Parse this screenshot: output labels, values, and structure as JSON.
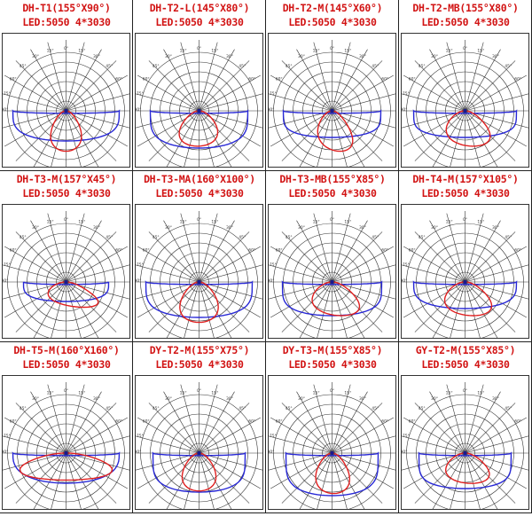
{
  "colors": {
    "title": "#d21414",
    "c0": "#2828d6",
    "c90": "#e02020",
    "grid": "#333333"
  },
  "angle_labels": [
    "90°",
    "75°",
    "60°",
    "45°",
    "30°",
    "15°",
    "0°",
    "15°",
    "30°",
    "45°",
    "60°",
    "75°",
    "90°"
  ],
  "panels": [
    {
      "title": "DH-T1(155°X90°)",
      "led": "LED:5050 4*3030",
      "c0_width_deg": 155,
      "c90_width_deg": 90
    },
    {
      "title": "DH-T2-L(145°X80°)",
      "led": "LED:5050 4*3030",
      "c0_width_deg": 145,
      "c90_width_deg": 80
    },
    {
      "title": "DH-T2-M(145°X60°)",
      "led": "LED:5050 4*3030",
      "c0_width_deg": 145,
      "c90_width_deg": 60
    },
    {
      "title": "DH-T2-MB(155°X80°)",
      "led": "LED:5050 4*3030",
      "c0_width_deg": 155,
      "c90_width_deg": 80
    },
    {
      "title": "DH-T3-M(157°X45°)",
      "led": "LED:5050 4*3030",
      "c0_width_deg": 157,
      "c90_width_deg": 45
    },
    {
      "title": "DH-T3-MA(160°X100°)",
      "led": "LED:5050 4*3030",
      "c0_width_deg": 160,
      "c90_width_deg": 100
    },
    {
      "title": "DH-T3-MB(155°X85°)",
      "led": "LED:5050 4*3030",
      "c0_width_deg": 155,
      "c90_width_deg": 85
    },
    {
      "title": "DH-T4-M(157°X105°)",
      "led": "LED:5050 4*3030",
      "c0_width_deg": 157,
      "c90_width_deg": 105
    },
    {
      "title": "DH-T5-M(160°X160°)",
      "led": "LED:5050 4*3030",
      "c0_width_deg": 160,
      "c90_width_deg": 160
    },
    {
      "title": "DY-T2-M(155°X75°)",
      "led": "LED:5050 4*3030",
      "c0_width_deg": 155,
      "c90_width_deg": 75
    },
    {
      "title": "DY-T3-M(155°X85°)",
      "led": "LED:5050 4*3030",
      "c0_width_deg": 155,
      "c90_width_deg": 85
    },
    {
      "title": "GY-T2-M(155°X85°)",
      "led": "LED:5050 4*3030",
      "c0_width_deg": 155,
      "c90_width_deg": 85
    }
  ]
}
